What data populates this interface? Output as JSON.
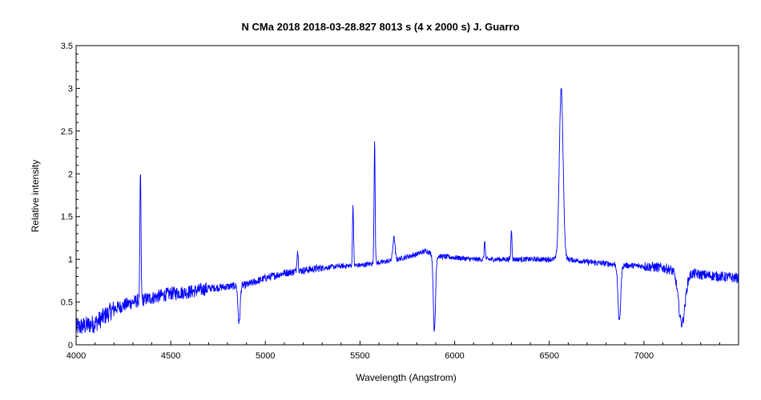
{
  "chart_data": {
    "type": "line",
    "title": "N CMa 2018   2018-03-28.827   8013 s (4 x 2000 s)   J. Guarro",
    "xlabel": "Wavelength (Angstrom)",
    "ylabel": "Relative intensity",
    "xlim": [
      4000,
      7500
    ],
    "ylim": [
      0,
      3.5
    ],
    "x_ticks": [
      "4000",
      "4500",
      "5000",
      "5500",
      "6000",
      "6500",
      "7000"
    ],
    "y_ticks": [
      "0",
      "0.5",
      "1",
      "1.5",
      "2",
      "2.5",
      "3",
      "3.5"
    ],
    "grid": false,
    "legend": "none",
    "series": [
      {
        "color": "#0000ff",
        "continuum": {
          "x": [
            4000,
            4100,
            4200,
            4300,
            4400,
            4500,
            4600,
            4700,
            4800,
            4900,
            5000,
            5100,
            5200,
            5300,
            5400,
            5500,
            5600,
            5700,
            5800,
            5850,
            5900,
            6000,
            6100,
            6200,
            6300,
            6400,
            6500,
            6600,
            6700,
            6800,
            6900,
            7000,
            7100,
            7200,
            7300,
            7400,
            7500
          ],
          "y": [
            0.2,
            0.25,
            0.42,
            0.5,
            0.55,
            0.6,
            0.62,
            0.66,
            0.68,
            0.7,
            0.78,
            0.84,
            0.87,
            0.9,
            0.92,
            0.93,
            0.96,
            1.0,
            1.06,
            1.1,
            1.04,
            1.02,
            1.0,
            1.0,
            1.0,
            1.0,
            1.0,
            1.0,
            0.97,
            0.95,
            0.93,
            0.92,
            0.9,
            0.85,
            0.82,
            0.8,
            0.78
          ]
        },
        "lines": [
          {
            "x": 4340,
            "peak": 2.02,
            "width": 4
          },
          {
            "x": 4861,
            "peak": 0.25,
            "width": 8
          },
          {
            "x": 5170,
            "peak": 1.1,
            "width": 5
          },
          {
            "x": 5463,
            "peak": 1.64,
            "width": 4
          },
          {
            "x": 5577,
            "peak": 2.4,
            "width": 4
          },
          {
            "x": 5679,
            "peak": 1.25,
            "width": 8
          },
          {
            "x": 5893,
            "peak": 0.15,
            "width": 8
          },
          {
            "x": 6159,
            "peak": 1.22,
            "width": 4
          },
          {
            "x": 6300,
            "peak": 1.35,
            "width": 4
          },
          {
            "x": 6563,
            "peak": 3.0,
            "width": 14
          },
          {
            "x": 6870,
            "peak": 0.27,
            "width": 10
          },
          {
            "x": 7200,
            "peak": 0.25,
            "width": 25
          }
        ]
      }
    ]
  }
}
